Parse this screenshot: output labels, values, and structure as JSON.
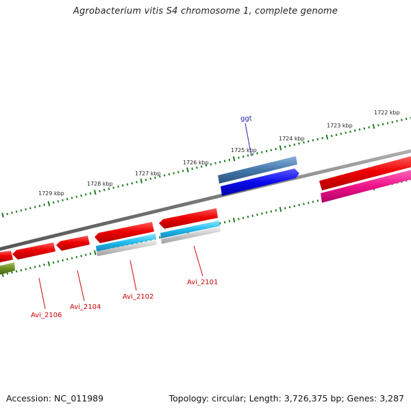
{
  "title": "Agrobacterium vitis S4 chromosome 1, complete genome",
  "footer": {
    "accession": "Accession: NC_011989",
    "summary": "Topology: circular; Length: 3,726,375 bp; Genes: 3,287"
  },
  "ruler_labels": [
    "1722 kbp",
    "1723 kbp",
    "1724 kbp",
    "1725 kbp",
    "1726 kbp",
    "1727 kbp",
    "1728 kbp",
    "1729 kbp"
  ],
  "gene_labels": {
    "ggt": "ggt",
    "avi_2101": "Avi_2101",
    "avi_2102": "Avi_2102",
    "avi_2104": "Avi_2104",
    "avi_2106": "Avi_2106"
  },
  "colors": {
    "backbone": "#7a7a7a",
    "tick": "#1e7a1e",
    "forward_gene": "#ee0000",
    "reverse_gene_pink": "#ee1188",
    "cyan_feature": "#22bbee",
    "gray_feature": "#c8c8c8",
    "blue_gene": "#0a0aee",
    "steel_gene": "#4477aa",
    "olive_gene": "#6b8e23"
  }
}
